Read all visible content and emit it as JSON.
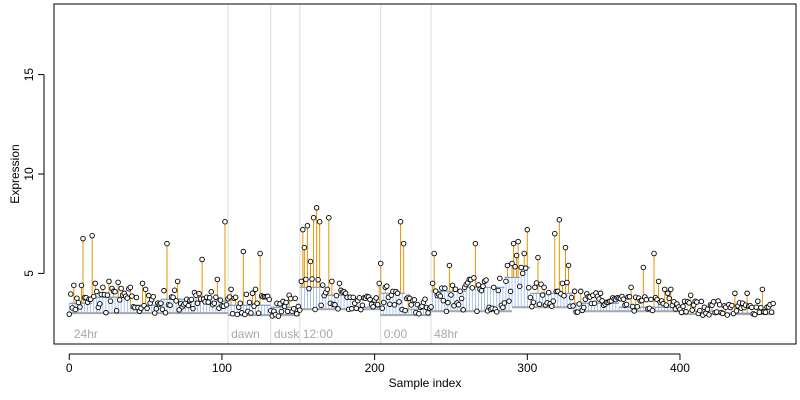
{
  "chart_data": {
    "type": "scatter",
    "title": "",
    "xlabel": "Sample index",
    "ylabel": "Expression",
    "xlim": [
      -10,
      476
    ],
    "ylim": [
      1.45,
      18.55
    ],
    "x_ticks": [
      0,
      100,
      200,
      300,
      400
    ],
    "y_ticks": [
      5,
      10,
      15
    ],
    "grid": false,
    "colors": {
      "points_stroke": "#000000",
      "spikes": "#e69500",
      "fitted_steps": "#6f9fe0",
      "baseline": "#a8a8a8",
      "dividers": "#dddddd",
      "annotation": "#a8a8a8"
    },
    "dividers": [
      104,
      132,
      151,
      204,
      237
    ],
    "annotations": [
      {
        "x": 3,
        "text": "24hr"
      },
      {
        "x": 106,
        "text": "dawn"
      },
      {
        "x": 134,
        "text": "dusk"
      },
      {
        "x": 153,
        "text": "12:00"
      },
      {
        "x": 206,
        "text": "0:00"
      },
      {
        "x": 239,
        "text": "48hr"
      }
    ],
    "baseline_segments": [
      {
        "x0": 0,
        "x1": 104,
        "y": 3.0
      },
      {
        "x0": 104,
        "x1": 132,
        "y": 2.9
      },
      {
        "x0": 132,
        "x1": 151,
        "y": 2.9
      },
      {
        "x0": 151,
        "x1": 204,
        "y": 3.2
      },
      {
        "x0": 204,
        "x1": 237,
        "y": 2.9
      },
      {
        "x0": 237,
        "x1": 290,
        "y": 3.1
      },
      {
        "x0": 290,
        "x1": 330,
        "y": 3.3
      },
      {
        "x0": 330,
        "x1": 400,
        "y": 3.1
      },
      {
        "x0": 400,
        "x1": 462,
        "y": 2.95
      }
    ],
    "fitted_steps": [
      {
        "x0": 0,
        "x1": 15,
        "y": 3.5
      },
      {
        "x0": 15,
        "x1": 40,
        "y": 3.8
      },
      {
        "x0": 40,
        "x1": 60,
        "y": 3.4
      },
      {
        "x0": 60,
        "x1": 80,
        "y": 3.7
      },
      {
        "x0": 80,
        "x1": 104,
        "y": 3.6
      },
      {
        "x0": 104,
        "x1": 132,
        "y": 3.4
      },
      {
        "x0": 132,
        "x1": 151,
        "y": 3.3
      },
      {
        "x0": 151,
        "x1": 165,
        "y": 4.3
      },
      {
        "x0": 165,
        "x1": 185,
        "y": 3.9
      },
      {
        "x0": 185,
        "x1": 204,
        "y": 3.3
      },
      {
        "x0": 204,
        "x1": 220,
        "y": 4.0
      },
      {
        "x0": 220,
        "x1": 237,
        "y": 3.2
      },
      {
        "x0": 237,
        "x1": 260,
        "y": 4.1
      },
      {
        "x0": 260,
        "x1": 285,
        "y": 4.3
      },
      {
        "x0": 285,
        "x1": 295,
        "y": 4.8
      },
      {
        "x0": 295,
        "x1": 302,
        "y": 5.3
      },
      {
        "x0": 302,
        "x1": 330,
        "y": 4.0
      },
      {
        "x0": 330,
        "x1": 360,
        "y": 3.5
      },
      {
        "x0": 360,
        "x1": 395,
        "y": 3.3
      },
      {
        "x0": 395,
        "x1": 430,
        "y": 3.1
      },
      {
        "x0": 430,
        "x1": 462,
        "y": 3.0
      }
    ],
    "spikes": [
      {
        "x": 3,
        "y": 4.4
      },
      {
        "x": 8,
        "y": 4.4
      },
      {
        "x": 9,
        "y": 6.75
      },
      {
        "x": 14,
        "y": 3.7
      },
      {
        "x": 15,
        "y": 6.9
      },
      {
        "x": 17,
        "y": 4.5
      },
      {
        "x": 22,
        "y": 4.3
      },
      {
        "x": 26,
        "y": 4.6
      },
      {
        "x": 29,
        "y": 4.1
      },
      {
        "x": 32,
        "y": 4.55
      },
      {
        "x": 36,
        "y": 4.0
      },
      {
        "x": 40,
        "y": 4.3
      },
      {
        "x": 48,
        "y": 4.5
      },
      {
        "x": 50,
        "y": 4.2
      },
      {
        "x": 64,
        "y": 6.5
      },
      {
        "x": 68,
        "y": 3.8
      },
      {
        "x": 71,
        "y": 4.6
      },
      {
        "x": 77,
        "y": 3.7
      },
      {
        "x": 83,
        "y": 3.9
      },
      {
        "x": 87,
        "y": 5.7
      },
      {
        "x": 90,
        "y": 3.8
      },
      {
        "x": 95,
        "y": 3.5
      },
      {
        "x": 97,
        "y": 4.7
      },
      {
        "x": 102,
        "y": 7.6
      },
      {
        "x": 106,
        "y": 4.2
      },
      {
        "x": 109,
        "y": 3.8
      },
      {
        "x": 112,
        "y": 3.5
      },
      {
        "x": 114,
        "y": 6.1
      },
      {
        "x": 120,
        "y": 4.0
      },
      {
        "x": 122,
        "y": 4.2
      },
      {
        "x": 125,
        "y": 6.0
      },
      {
        "x": 136,
        "y": 3.5
      },
      {
        "x": 144,
        "y": 3.9
      },
      {
        "x": 152,
        "y": 4.6
      },
      {
        "x": 153,
        "y": 7.2
      },
      {
        "x": 154,
        "y": 6.3
      },
      {
        "x": 156,
        "y": 7.4
      },
      {
        "x": 158,
        "y": 5.6
      },
      {
        "x": 160,
        "y": 7.8
      },
      {
        "x": 162,
        "y": 8.3
      },
      {
        "x": 164,
        "y": 7.6
      },
      {
        "x": 169,
        "y": 4.2
      },
      {
        "x": 170,
        "y": 7.8
      },
      {
        "x": 172,
        "y": 4.6
      },
      {
        "x": 177,
        "y": 4.5
      },
      {
        "x": 181,
        "y": 4.0
      },
      {
        "x": 184,
        "y": 3.8
      },
      {
        "x": 187,
        "y": 3.5
      },
      {
        "x": 192,
        "y": 3.4
      },
      {
        "x": 203,
        "y": 4.5
      },
      {
        "x": 204,
        "y": 5.5
      },
      {
        "x": 207,
        "y": 4.3
      },
      {
        "x": 215,
        "y": 4.0
      },
      {
        "x": 217,
        "y": 7.6
      },
      {
        "x": 219,
        "y": 6.5
      },
      {
        "x": 222,
        "y": 3.8
      },
      {
        "x": 238,
        "y": 4.5
      },
      {
        "x": 239,
        "y": 6.0
      },
      {
        "x": 249,
        "y": 5.4
      },
      {
        "x": 251,
        "y": 4.4
      },
      {
        "x": 259,
        "y": 4.3
      },
      {
        "x": 266,
        "y": 6.5
      },
      {
        "x": 269,
        "y": 4.2
      },
      {
        "x": 272,
        "y": 4.6
      },
      {
        "x": 278,
        "y": 4.3
      },
      {
        "x": 287,
        "y": 5.4
      },
      {
        "x": 290,
        "y": 5.5
      },
      {
        "x": 291,
        "y": 6.5
      },
      {
        "x": 293,
        "y": 5.9
      },
      {
        "x": 294,
        "y": 6.6
      },
      {
        "x": 296,
        "y": 5.3
      },
      {
        "x": 298,
        "y": 6.0
      },
      {
        "x": 300,
        "y": 7.2
      },
      {
        "x": 307,
        "y": 5.8
      },
      {
        "x": 311,
        "y": 4.3
      },
      {
        "x": 318,
        "y": 7.0
      },
      {
        "x": 320,
        "y": 4.1
      },
      {
        "x": 321,
        "y": 7.7
      },
      {
        "x": 323,
        "y": 4.5
      },
      {
        "x": 325,
        "y": 6.3
      },
      {
        "x": 327,
        "y": 5.4
      },
      {
        "x": 331,
        "y": 4.1
      },
      {
        "x": 335,
        "y": 4.1
      },
      {
        "x": 338,
        "y": 3.7
      },
      {
        "x": 344,
        "y": 3.5
      },
      {
        "x": 348,
        "y": 4.0
      },
      {
        "x": 354,
        "y": 3.6
      },
      {
        "x": 363,
        "y": 3.7
      },
      {
        "x": 368,
        "y": 4.3
      },
      {
        "x": 371,
        "y": 3.8
      },
      {
        "x": 376,
        "y": 5.3
      },
      {
        "x": 383,
        "y": 6.0
      },
      {
        "x": 386,
        "y": 4.6
      },
      {
        "x": 390,
        "y": 4.2
      },
      {
        "x": 392,
        "y": 4.0
      },
      {
        "x": 394,
        "y": 4.2
      },
      {
        "x": 403,
        "y": 3.6
      },
      {
        "x": 407,
        "y": 3.9
      },
      {
        "x": 410,
        "y": 3.6
      },
      {
        "x": 416,
        "y": 3.3
      },
      {
        "x": 421,
        "y": 3.4
      },
      {
        "x": 430,
        "y": 3.3
      },
      {
        "x": 436,
        "y": 4.0
      },
      {
        "x": 441,
        "y": 3.5
      },
      {
        "x": 444,
        "y": 4.0
      },
      {
        "x": 451,
        "y": 3.6
      },
      {
        "x": 454,
        "y": 4.2
      }
    ],
    "base_points_seed": 7,
    "n_samples": 462
  }
}
